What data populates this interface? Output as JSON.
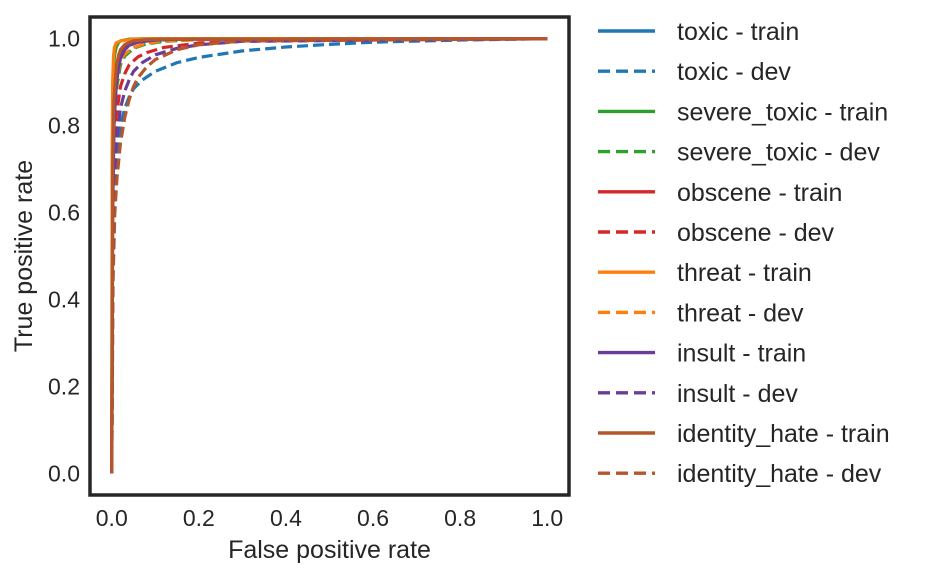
{
  "chart_data": {
    "type": "line",
    "title": "",
    "xlabel": "False positive rate",
    "ylabel": "True positive rate",
    "xlim": [
      -0.05,
      1.05
    ],
    "ylim": [
      -0.05,
      1.05
    ],
    "xticks": [
      0.0,
      0.2,
      0.4,
      0.6,
      0.8,
      1.0
    ],
    "xtick_labels": [
      "0.0",
      "0.2",
      "0.4",
      "0.6",
      "0.8",
      "1.0"
    ],
    "yticks": [
      0.0,
      0.2,
      0.4,
      0.6,
      0.8,
      1.0
    ],
    "ytick_labels": [
      "0.0",
      "0.2",
      "0.4",
      "0.6",
      "0.8",
      "1.0"
    ],
    "grid": false,
    "legend_position": "outside-right",
    "series": [
      {
        "name": "toxic - train",
        "color": "#1f77b4",
        "style": "solid",
        "x": [
          0,
          0.002,
          0.005,
          0.01,
          0.015,
          0.02,
          0.03,
          0.04,
          0.06,
          0.08,
          0.1,
          0.15,
          0.2,
          1.0
        ],
        "y": [
          0,
          0.6,
          0.8,
          0.9,
          0.94,
          0.96,
          0.978,
          0.986,
          0.992,
          0.995,
          0.997,
          0.999,
          1.0,
          1.0
        ]
      },
      {
        "name": "toxic - dev",
        "color": "#1f77b4",
        "style": "dashed",
        "x": [
          0,
          0.002,
          0.005,
          0.01,
          0.02,
          0.03,
          0.04,
          0.05,
          0.07,
          0.1,
          0.15,
          0.2,
          0.3,
          0.4,
          0.5,
          0.6,
          0.8,
          1.0
        ],
        "y": [
          0,
          0.4,
          0.6,
          0.71,
          0.8,
          0.84,
          0.866,
          0.885,
          0.905,
          0.925,
          0.945,
          0.957,
          0.972,
          0.981,
          0.987,
          0.992,
          0.997,
          1.0
        ]
      },
      {
        "name": "severe_toxic - train",
        "color": "#2ca02c",
        "style": "solid",
        "x": [
          0,
          0.001,
          0.003,
          0.006,
          0.01,
          0.015,
          0.02,
          0.04,
          0.08,
          1.0
        ],
        "y": [
          0,
          0.7,
          0.9,
          0.96,
          0.98,
          0.99,
          0.995,
          0.999,
          1.0,
          1.0
        ]
      },
      {
        "name": "severe_toxic - dev",
        "color": "#2ca02c",
        "style": "dashed",
        "x": [
          0,
          0.002,
          0.005,
          0.01,
          0.02,
          0.03,
          0.05,
          0.08,
          0.12,
          0.2,
          1.0
        ],
        "y": [
          0,
          0.6,
          0.8,
          0.88,
          0.94,
          0.96,
          0.978,
          0.988,
          0.994,
          0.998,
          1.0
        ]
      },
      {
        "name": "obscene - train",
        "color": "#d62728",
        "style": "solid",
        "x": [
          0,
          0.002,
          0.005,
          0.01,
          0.015,
          0.02,
          0.03,
          0.05,
          0.08,
          0.12,
          1.0
        ],
        "y": [
          0,
          0.7,
          0.85,
          0.92,
          0.95,
          0.97,
          0.984,
          0.993,
          0.997,
          0.999,
          1.0
        ]
      },
      {
        "name": "obscene - dev",
        "color": "#d62728",
        "style": "dashed",
        "x": [
          0,
          0.002,
          0.005,
          0.01,
          0.02,
          0.03,
          0.04,
          0.06,
          0.08,
          0.12,
          0.2,
          0.3,
          1.0
        ],
        "y": [
          0,
          0.55,
          0.72,
          0.82,
          0.89,
          0.92,
          0.94,
          0.958,
          0.968,
          0.98,
          0.99,
          0.995,
          1.0
        ]
      },
      {
        "name": "threat - train",
        "color": "#ff7f0e",
        "style": "solid",
        "x": [
          0,
          0.001,
          0.002,
          0.004,
          0.006,
          0.01,
          0.02,
          0.05,
          0.1,
          1.0
        ],
        "y": [
          0,
          0.75,
          0.9,
          0.96,
          0.98,
          0.99,
          0.995,
          0.999,
          1.0,
          1.0
        ]
      },
      {
        "name": "threat - dev",
        "color": "#ff7f0e",
        "style": "dashed",
        "x": [
          0,
          0.002,
          0.005,
          0.01,
          0.02,
          0.03,
          0.05,
          0.08,
          0.12,
          0.2,
          1.0
        ],
        "y": [
          0,
          0.65,
          0.82,
          0.9,
          0.95,
          0.965,
          0.98,
          0.99,
          0.995,
          0.998,
          1.0
        ]
      },
      {
        "name": "insult - train",
        "color": "#6a3d9a",
        "style": "solid",
        "x": [
          0,
          0.002,
          0.005,
          0.01,
          0.015,
          0.02,
          0.03,
          0.04,
          0.06,
          0.1,
          0.15,
          1.0
        ],
        "y": [
          0,
          0.6,
          0.8,
          0.89,
          0.93,
          0.955,
          0.975,
          0.985,
          0.992,
          0.997,
          0.999,
          1.0
        ]
      },
      {
        "name": "insult - dev",
        "color": "#6a3d9a",
        "style": "dashed",
        "x": [
          0,
          0.002,
          0.005,
          0.01,
          0.02,
          0.03,
          0.04,
          0.05,
          0.07,
          0.1,
          0.15,
          0.2,
          0.3,
          1.0
        ],
        "y": [
          0,
          0.5,
          0.66,
          0.76,
          0.84,
          0.88,
          0.905,
          0.925,
          0.945,
          0.963,
          0.978,
          0.986,
          0.994,
          1.0
        ]
      },
      {
        "name": "identity_hate - train",
        "color": "#b5562b",
        "style": "solid",
        "x": [
          0,
          0.002,
          0.005,
          0.01,
          0.015,
          0.02,
          0.03,
          0.05,
          0.08,
          0.12,
          1.0
        ],
        "y": [
          0,
          0.7,
          0.86,
          0.93,
          0.96,
          0.975,
          0.987,
          0.995,
          0.998,
          0.999,
          1.0
        ]
      },
      {
        "name": "identity_hate - dev",
        "color": "#b5562b",
        "style": "dashed",
        "x": [
          0,
          0.003,
          0.007,
          0.012,
          0.02,
          0.03,
          0.04,
          0.05,
          0.06,
          0.08,
          0.1,
          0.15,
          0.2,
          0.3,
          1.0
        ],
        "y": [
          0,
          0.45,
          0.6,
          0.68,
          0.76,
          0.82,
          0.86,
          0.89,
          0.91,
          0.935,
          0.952,
          0.975,
          0.986,
          0.995,
          1.0
        ]
      }
    ]
  }
}
